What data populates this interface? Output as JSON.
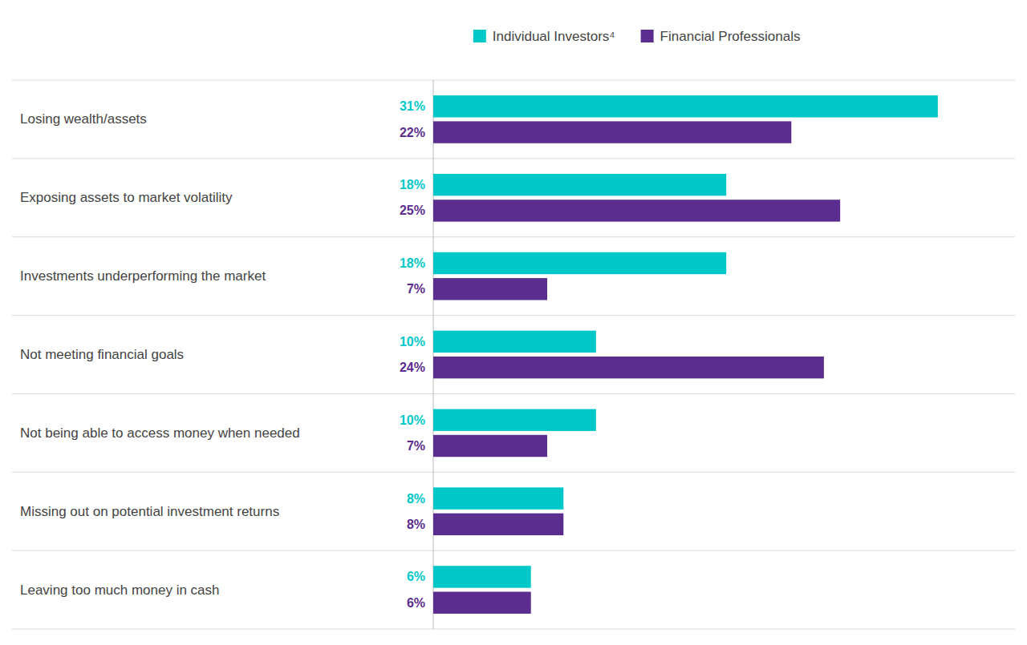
{
  "chart_data": {
    "type": "bar",
    "orientation": "horizontal",
    "categories": [
      "Losing wealth/assets",
      "Exposing assets to market volatility",
      "Investments underperforming the market",
      "Not meeting financial goals",
      "Not being able to access money when needed",
      "Missing out on potential investment returns",
      "Leaving too much money in cash"
    ],
    "series": [
      {
        "name": "Individual Investors⁴",
        "color": "#00C8C8",
        "values": [
          31,
          18,
          18,
          10,
          10,
          8,
          6
        ],
        "value_labels": [
          "31%",
          "18%",
          "18%",
          "10%",
          "10%",
          "8%",
          "6%"
        ]
      },
      {
        "name": "Financial Professionals",
        "color": "#5B2D8E",
        "values": [
          22,
          25,
          7,
          24,
          7,
          8,
          6
        ],
        "value_labels": [
          "22%",
          "25%",
          "7%",
          "24%",
          "7%",
          "8%",
          "6%"
        ]
      }
    ],
    "xlim": [
      0,
      35
    ],
    "data_labels": true,
    "tick_labels": "y",
    "grid": false,
    "legend": "top"
  }
}
